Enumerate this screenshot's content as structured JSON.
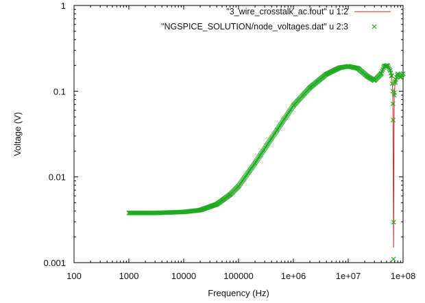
{
  "chart_data": {
    "type": "line",
    "title": "",
    "xlabel": "Frequency (Hz)",
    "ylabel": "Voltage (V)",
    "xscale": "log",
    "yscale": "log",
    "xlim": [
      100,
      100000000
    ],
    "ylim": [
      0.001,
      1
    ],
    "x_ticks": [
      {
        "value": 100,
        "label": "100"
      },
      {
        "value": 1000,
        "label": "1000"
      },
      {
        "value": 10000,
        "label": "10000"
      },
      {
        "value": 100000,
        "label": "100000"
      },
      {
        "value": 1000000,
        "label": "1e+06"
      },
      {
        "value": 10000000,
        "label": "1e+07"
      },
      {
        "value": 100000000,
        "label": "1e+08"
      }
    ],
    "y_ticks": [
      {
        "value": 0.001,
        "label": "0.001"
      },
      {
        "value": 0.01,
        "label": "0.01"
      },
      {
        "value": 0.1,
        "label": "0.1"
      },
      {
        "value": 1,
        "label": "1"
      }
    ],
    "grid": false,
    "legend_position": "top-right",
    "series": [
      {
        "name": "\"3_wire_crosstalk_ac.fout\" u 1:2",
        "style": "line",
        "color": "#cc2020",
        "x": [
          1000,
          3000,
          10000,
          20000,
          40000,
          70000,
          100000,
          200000,
          500000,
          1000000,
          2000000,
          4000000,
          7000000,
          10000000,
          15000000,
          22000000,
          30000000,
          40000000,
          45000000,
          52000000,
          58000000,
          62000000,
          65000000,
          66000000,
          67000000,
          69000000,
          72000000,
          80000000,
          90000000,
          100000000
        ],
        "y": [
          0.0038,
          0.0038,
          0.0039,
          0.0041,
          0.0048,
          0.0062,
          0.0078,
          0.0145,
          0.035,
          0.068,
          0.11,
          0.158,
          0.188,
          0.195,
          0.185,
          0.15,
          0.133,
          0.16,
          0.195,
          0.2,
          0.175,
          0.15,
          0.1,
          0.03,
          0.0015,
          0.09,
          0.13,
          0.16,
          0.145,
          0.16
        ]
      },
      {
        "name": "\"NGSPICE_SOLUTION/node_voltages.dat\" u 2:3",
        "style": "markers",
        "marker": "x",
        "color": "#22aa22",
        "x": [
          1000,
          3000,
          10000,
          20000,
          40000,
          70000,
          100000,
          200000,
          500000,
          1000000,
          2000000,
          4000000,
          7000000,
          10000000,
          15000000,
          22000000,
          30000000,
          40000000,
          45000000,
          52000000,
          58000000,
          62000000,
          65000000,
          66000000,
          67000000,
          69000000,
          72000000,
          80000000,
          90000000,
          100000000
        ],
        "y": [
          0.0038,
          0.0038,
          0.0039,
          0.0041,
          0.0048,
          0.0062,
          0.0078,
          0.0145,
          0.035,
          0.068,
          0.11,
          0.158,
          0.188,
          0.195,
          0.185,
          0.15,
          0.133,
          0.16,
          0.195,
          0.2,
          0.175,
          0.15,
          0.1,
          0.046,
          0.0011,
          0.09,
          0.13,
          0.16,
          0.145,
          0.16
        ]
      }
    ]
  }
}
